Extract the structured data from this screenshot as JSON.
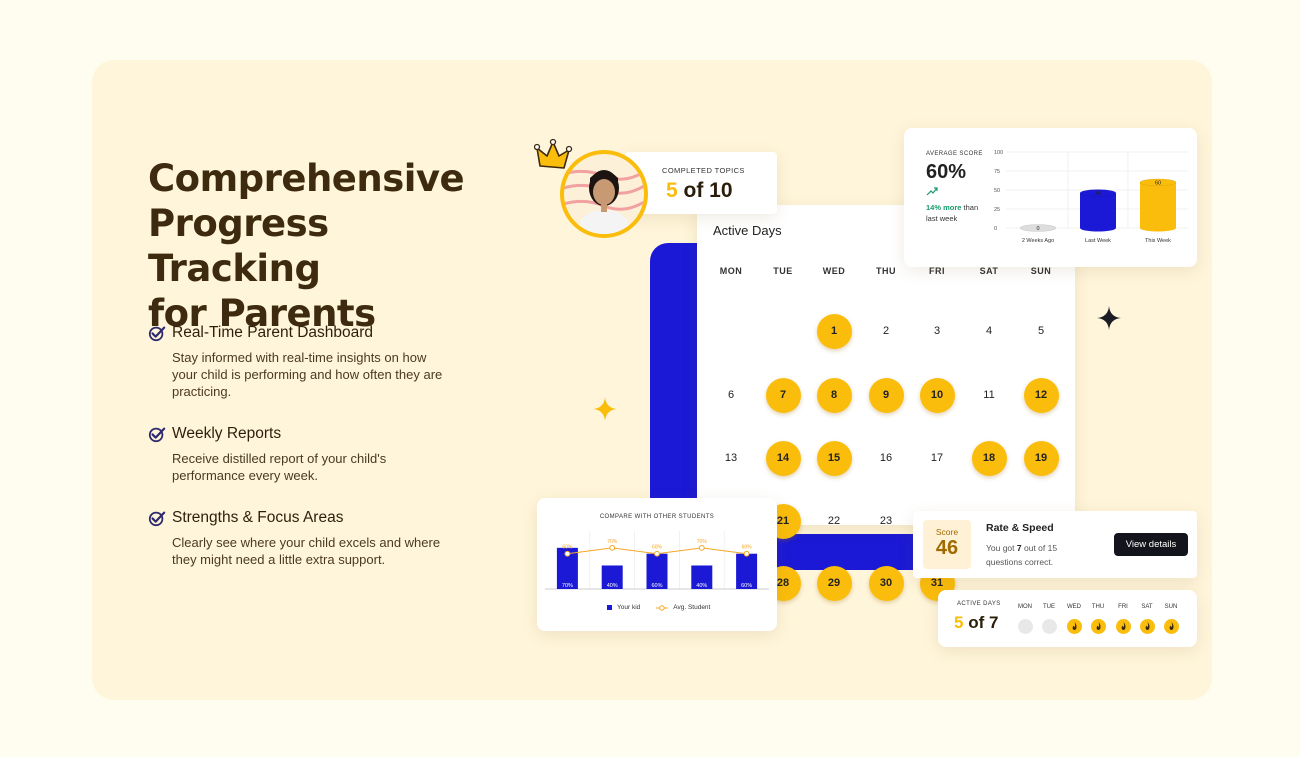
{
  "headline": [
    "Comprehensive",
    "Progress Tracking",
    "for Parents"
  ],
  "features": [
    {
      "title": "Real-Time Parent Dashboard",
      "desc": "Stay informed with real-time insights on how your child is performing and how often they are practicing."
    },
    {
      "title": "Weekly Reports",
      "desc": "Receive distilled report of your child's performance every week."
    },
    {
      "title": "Strengths & Focus Areas",
      "desc": "Clearly see where your child excels and where they might need a little extra support."
    }
  ],
  "completed_topics": {
    "label": "COMPLETED TOPICS",
    "done": "5",
    "of_text": "of 10"
  },
  "average_score": {
    "label": "AVERAGE SCORE",
    "value": "60%",
    "trend_strong": "14% more",
    "trend_rest": " than last week",
    "chart_data": {
      "type": "bar",
      "categories": [
        "2 Weeks Ago",
        "Last Week",
        "This Week"
      ],
      "values": [
        0,
        46,
        60
      ],
      "yticks": [
        "100",
        "75",
        "50",
        "25",
        "0"
      ],
      "ylim": [
        0,
        100
      ],
      "colors": [
        "#dddddd",
        "#1b19d6",
        "#fbbd0c"
      ]
    }
  },
  "calendar": {
    "title": "Active Days",
    "weekdays": [
      "MON",
      "TUE",
      "WED",
      "THU",
      "FRI",
      "SAT",
      "SUN"
    ],
    "weeks": [
      [
        null,
        null,
        {
          "d": "1",
          "on": true
        },
        {
          "d": "2",
          "on": false
        },
        {
          "d": "3",
          "on": false
        },
        {
          "d": "4",
          "on": false
        },
        {
          "d": "5",
          "on": false
        }
      ],
      [
        {
          "d": "6",
          "on": false
        },
        {
          "d": "7",
          "on": true
        },
        {
          "d": "8",
          "on": true
        },
        {
          "d": "9",
          "on": true
        },
        {
          "d": "10",
          "on": true
        },
        {
          "d": "11",
          "on": false
        },
        {
          "d": "12",
          "on": true
        }
      ],
      [
        {
          "d": "13",
          "on": false
        },
        {
          "d": "14",
          "on": true
        },
        {
          "d": "15",
          "on": true
        },
        {
          "d": "16",
          "on": false
        },
        {
          "d": "17",
          "on": false
        },
        {
          "d": "18",
          "on": true
        },
        {
          "d": "19",
          "on": true
        }
      ],
      [
        null,
        {
          "d": "21",
          "on": true
        },
        {
          "d": "22",
          "on": false
        },
        {
          "d": "23",
          "on": false
        },
        null,
        null,
        null
      ],
      [
        null,
        {
          "d": "28",
          "on": true
        },
        {
          "d": "29",
          "on": true
        },
        {
          "d": "30",
          "on": true
        },
        {
          "d": "31",
          "on": true
        },
        null,
        null
      ]
    ]
  },
  "compare": {
    "title": "COMPARE WITH OTHER STUDENTS",
    "chart_data": {
      "type": "bar",
      "series": [
        {
          "name": "Your kid",
          "values": [
            70,
            40,
            60,
            40,
            60
          ]
        },
        {
          "name": "Avg. Student",
          "values": [
            60,
            70,
            60,
            70,
            60
          ]
        }
      ],
      "bar_labels": [
        "70%",
        "40%",
        "60%",
        "40%",
        "60%"
      ],
      "avg_labels": [
        "60%",
        "70%",
        "60%",
        "70%",
        "60%"
      ],
      "colors": {
        "kid": "#1b19d6",
        "avg": "#f5a623"
      }
    },
    "legend": {
      "kid": "Your kid",
      "avg": "Avg. Student"
    }
  },
  "rate_speed": {
    "score_label": "Score",
    "score_value": "46",
    "title": "Rate & Speed",
    "desc_pre": "You got ",
    "desc_num": "7",
    "desc_post": " out of 15 questions correct.",
    "button": "View details"
  },
  "active_days": {
    "label": "ACTIVE DAYS",
    "done": "5",
    "of_text": "of 7",
    "days": [
      "MON",
      "TUE",
      "WED",
      "THU",
      "FRI",
      "SAT",
      "SUN"
    ],
    "active": [
      false,
      false,
      true,
      true,
      true,
      true,
      true
    ]
  },
  "colors": {
    "accent_yellow": "#fbbd0c",
    "accent_blue": "#1b19d6",
    "brown": "#3d2a0f",
    "panel": "#fff5da"
  }
}
